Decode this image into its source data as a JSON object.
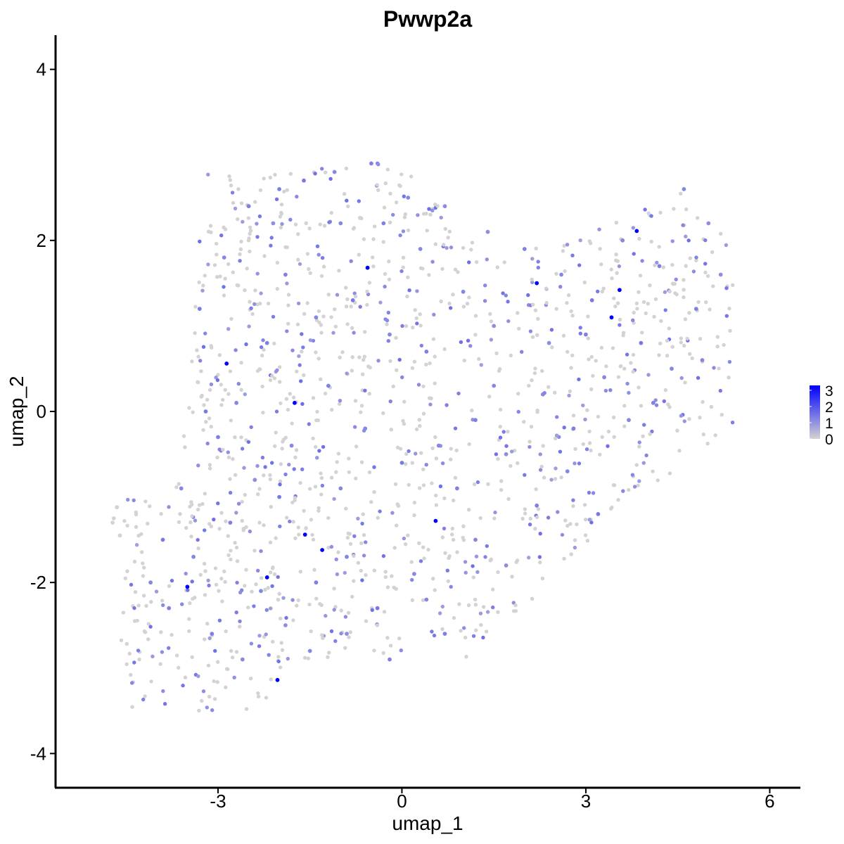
{
  "chart_data": {
    "type": "scatter",
    "title": "Pwwp2a",
    "xlabel": "umap_1",
    "ylabel": "umap_2",
    "xlim": [
      -5.65,
      6.5
    ],
    "ylim": [
      -4.4,
      4.4
    ],
    "xticks": [
      -3,
      0,
      3,
      6
    ],
    "yticks": [
      -4,
      -2,
      0,
      2,
      4
    ],
    "xtick_labels": [
      "-3",
      "0",
      "3",
      "6"
    ],
    "ytick_labels": [
      "-4",
      "-2",
      "0",
      "2",
      "4"
    ],
    "grid": false,
    "legend": {
      "placement": "right",
      "type": "colorbar",
      "min": 0,
      "max": 3.3,
      "ticks": [
        0,
        1,
        2,
        3
      ],
      "tick_labels": [
        "0",
        "1",
        "2",
        "3"
      ],
      "low_color": "#d3d3d3",
      "high_color": "#0000ff"
    },
    "points": [
      [
        -2.86,
        0.56,
        3.3
      ],
      [
        -1.75,
        0.1,
        3.3
      ],
      [
        -0.56,
        1.68,
        3.3
      ],
      [
        3.55,
        1.42,
        3.3
      ],
      [
        3.83,
        2.11,
        3.3
      ],
      [
        3.42,
        1.1,
        3.3
      ],
      [
        -3.5,
        -2.05,
        3.3
      ],
      [
        -2.2,
        -1.94,
        3.3
      ],
      [
        -1.58,
        -1.44,
        3.3
      ],
      [
        -1.3,
        -1.62,
        3.3
      ],
      [
        0.55,
        -1.28,
        3.3
      ],
      [
        -2.03,
        -3.14,
        3.3
      ],
      [
        2.2,
        1.5,
        3.3
      ],
      [
        -3.3,
        1.2,
        1.4
      ],
      [
        -2.9,
        1.8,
        1.2
      ],
      [
        -2.5,
        2.4,
        1.3
      ],
      [
        -2.1,
        2.2,
        1.1
      ],
      [
        -1.6,
        2.7,
        1.4
      ],
      [
        -1.1,
        2.8,
        1.2
      ],
      [
        -0.5,
        2.9,
        1.3
      ],
      [
        0.1,
        2.5,
        1.2
      ],
      [
        0.7,
        2.4,
        1.1
      ],
      [
        -1.9,
        1.6,
        1.3
      ],
      [
        -1.4,
        1.1,
        1.2
      ],
      [
        -0.8,
        1.3,
        1.4
      ],
      [
        -0.2,
        0.9,
        1.2
      ],
      [
        0.4,
        0.7,
        1.3
      ],
      [
        1.0,
        1.4,
        1.2
      ],
      [
        1.5,
        1.0,
        1.1
      ],
      [
        2.0,
        1.9,
        1.3
      ],
      [
        2.6,
        1.6,
        1.2
      ],
      [
        3.1,
        1.3,
        1.4
      ],
      [
        3.6,
        2.0,
        1.2
      ],
      [
        4.2,
        1.7,
        1.3
      ],
      [
        4.6,
        2.6,
        1.2
      ],
      [
        5.0,
        2.2,
        1.1
      ],
      [
        4.8,
        1.2,
        1.3
      ],
      [
        4.4,
        0.5,
        1.2
      ],
      [
        3.9,
        0.8,
        1.4
      ],
      [
        3.3,
        0.4,
        1.2
      ],
      [
        2.8,
        -0.2,
        1.3
      ],
      [
        2.3,
        0.2,
        1.2
      ],
      [
        1.7,
        -0.5,
        1.1
      ],
      [
        1.2,
        -0.1,
        1.3
      ],
      [
        0.6,
        -0.4,
        1.2
      ],
      [
        0.0,
        -0.6,
        1.4
      ],
      [
        -0.6,
        -0.2,
        1.2
      ],
      [
        -1.2,
        0.3,
        1.3
      ],
      [
        -1.8,
        -0.4,
        1.2
      ],
      [
        -2.4,
        -0.8,
        1.1
      ],
      [
        -3.0,
        -0.3,
        1.3
      ],
      [
        -3.6,
        -0.9,
        1.2
      ],
      [
        -3.9,
        -1.5,
        1.4
      ],
      [
        -3.4,
        -1.7,
        1.2
      ],
      [
        -2.8,
        -1.3,
        1.3
      ],
      [
        -2.3,
        -2.1,
        1.2
      ],
      [
        -1.9,
        -2.5,
        1.1
      ],
      [
        -1.4,
        -2.0,
        1.3
      ],
      [
        -0.9,
        -1.7,
        1.2
      ],
      [
        -0.4,
        -2.3,
        1.4
      ],
      [
        0.2,
        -1.9,
        1.2
      ],
      [
        0.7,
        -2.6,
        1.3
      ],
      [
        1.2,
        -1.5,
        1.2
      ],
      [
        1.7,
        -1.8,
        1.1
      ],
      [
        2.2,
        -1.1,
        1.3
      ],
      [
        2.7,
        -0.7,
        1.2
      ],
      [
        3.2,
        -1.2,
        1.4
      ],
      [
        -2.6,
        -2.9,
        1.2
      ],
      [
        -3.1,
        -2.6,
        1.3
      ],
      [
        -1.5,
        -2.8,
        1.2
      ],
      [
        -0.9,
        -2.6,
        1.1
      ],
      [
        -0.2,
        -2.9,
        1.3
      ],
      [
        0.4,
        -2.2,
        1.2
      ],
      [
        -3.8,
        -2.3,
        1.3
      ],
      [
        -4.1,
        -2.0,
        1.2
      ],
      [
        -2.0,
        -1.0,
        1.4
      ],
      [
        -1.0,
        -0.9,
        1.2
      ],
      [
        0.9,
        -0.9,
        1.3
      ],
      [
        1.5,
        0.3,
        1.2
      ],
      [
        2.4,
        0.8,
        1.1
      ],
      [
        3.0,
        0.9,
        1.3
      ],
      [
        3.7,
        -0.1,
        1.2
      ],
      [
        4.1,
        0.1,
        1.3
      ],
      [
        4.9,
        0.6,
        1.2
      ],
      [
        5.2,
        1.6,
        1.1
      ],
      [
        -2.2,
        0.8,
        1.3
      ],
      [
        -2.7,
        0.1,
        1.2
      ],
      [
        -3.2,
        0.0,
        1.4
      ],
      [
        -1.0,
        2.2,
        1.2
      ],
      [
        -0.3,
        2.2,
        1.3
      ],
      [
        0.3,
        1.9,
        1.2
      ],
      [
        1.4,
        2.1,
        1.1
      ],
      [
        -2.0,
        2.6,
        1.3
      ],
      [
        -4.7,
        -1.25,
        0
      ],
      [
        -4.65,
        -1.12,
        0
      ],
      [
        -4.72,
        -1.3,
        0
      ],
      [
        -4.6,
        -1.45,
        0
      ]
    ]
  }
}
